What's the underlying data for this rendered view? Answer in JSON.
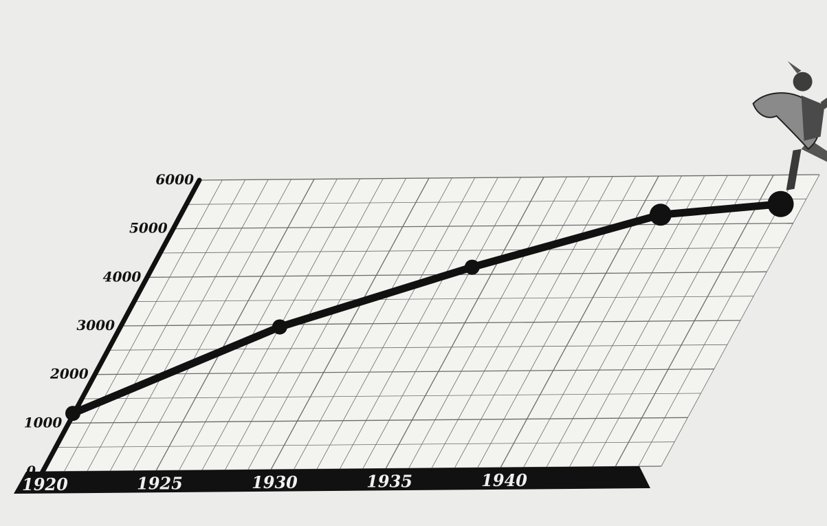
{
  "chart_data": {
    "type": "line",
    "title": "",
    "xlabel": "",
    "ylabel": "",
    "categories": [
      "1920",
      "1925",
      "1930",
      "1935",
      "1940"
    ],
    "x_ticks": [
      1920,
      1925,
      1930,
      1935,
      1940
    ],
    "y_ticks": [
      0,
      1000,
      2000,
      3000,
      4000,
      5000,
      6000
    ],
    "y_tick_labels": [
      "0",
      "1000",
      "2000",
      "3000",
      "4000",
      "5000",
      "6000"
    ],
    "xlim": [
      1920,
      1947
    ],
    "ylim": [
      0,
      6000
    ],
    "grid": true,
    "projection": "oblique perspective",
    "series": [
      {
        "points": [
          {
            "x": 1920,
            "y": 1200
          },
          {
            "x": 1927,
            "y": 2950
          },
          {
            "x": 1934,
            "y": 4150
          },
          {
            "x": 1941,
            "y": 5200
          },
          {
            "x": 1946,
            "y": 5400
          }
        ]
      }
    ],
    "colors": {
      "background": "#ececea",
      "plane": "#f3f3f0",
      "grid": "#6b6b6b",
      "axis": "#111111",
      "line": "#111111",
      "label": "#f0f0f0"
    }
  },
  "illustration": {
    "icon": "hermes-figure-with-caduceus-icon"
  }
}
